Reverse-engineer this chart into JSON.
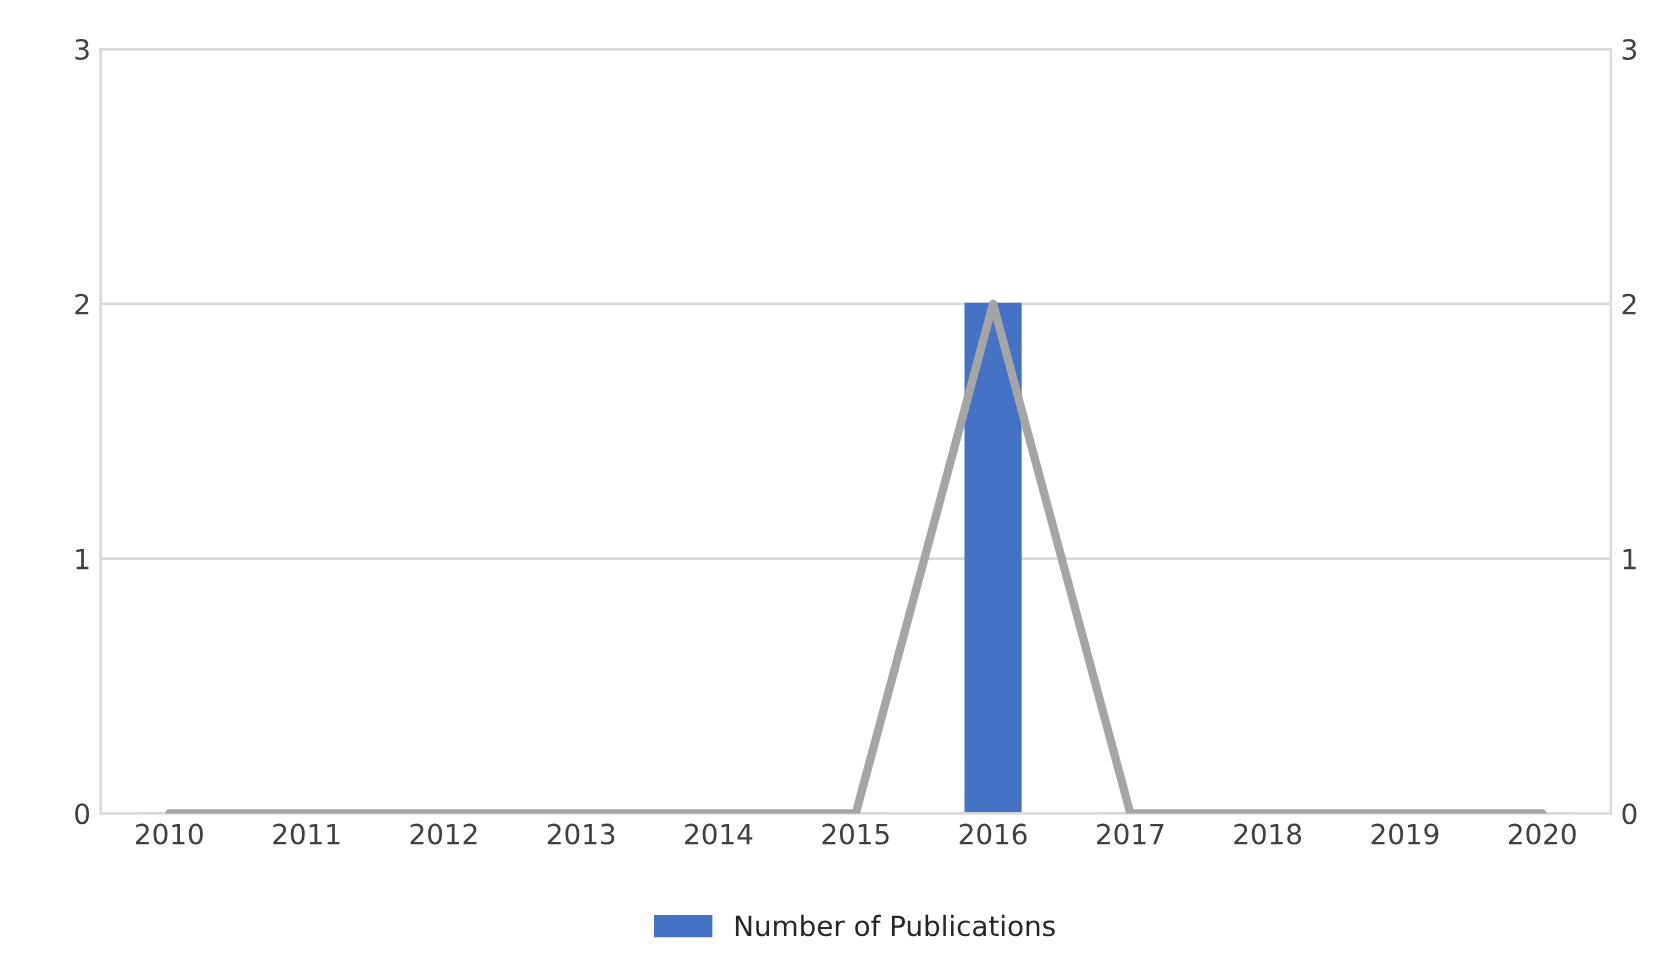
{
  "chart_data": {
    "type": "bar",
    "categories": [
      "2010",
      "2011",
      "2012",
      "2013",
      "2014",
      "2015",
      "2016",
      "2017",
      "2018",
      "2019",
      "2020"
    ],
    "series": [
      {
        "name": "Number of Publications",
        "color": "#4472c4",
        "values": [
          0,
          0,
          0,
          0,
          0,
          0,
          2,
          0,
          0,
          0,
          0
        ]
      },
      {
        "type": "line",
        "axis": "y2",
        "color": "#a5a5a5",
        "values": [
          0,
          0,
          0,
          0,
          0,
          0,
          2,
          0,
          0,
          0,
          0
        ]
      }
    ],
    "ylim": [
      0,
      3
    ],
    "yticks": [
      0,
      1,
      2,
      3
    ],
    "y2lim": [
      0,
      3
    ],
    "y2ticks": [
      0,
      1,
      2,
      3
    ],
    "grid": "y",
    "legend": "bottom",
    "marker": "none",
    "line_style": "solid"
  }
}
